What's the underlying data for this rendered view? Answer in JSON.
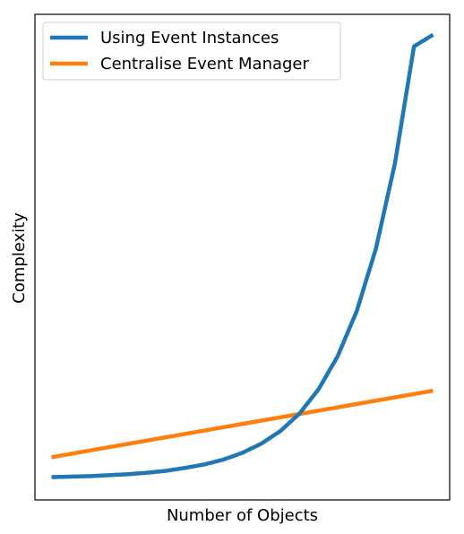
{
  "chart_data": {
    "type": "line",
    "title": "",
    "xlabel": "Number of Objects",
    "ylabel": "Complexity",
    "xlim": [
      0,
      1
    ],
    "ylim": [
      0,
      1
    ],
    "grid": false,
    "ticks_visible": false,
    "legend_position": "top-left",
    "series": [
      {
        "name": "Using Event Instances",
        "color": "#1f77b4",
        "growth": "exponential",
        "x": [
          0.0,
          0.05,
          0.1,
          0.15,
          0.2,
          0.25,
          0.3,
          0.35,
          0.4,
          0.45,
          0.5,
          0.55,
          0.6,
          0.65,
          0.7,
          0.75,
          0.8,
          0.85,
          0.9,
          0.95,
          1.0
        ],
        "y": [
          0.047,
          0.048,
          0.049,
          0.051,
          0.053,
          0.056,
          0.06,
          0.066,
          0.073,
          0.083,
          0.097,
          0.116,
          0.142,
          0.178,
          0.228,
          0.296,
          0.389,
          0.517,
          0.693,
          0.934,
          0.958
        ]
      },
      {
        "name": "Centralise Event Manager",
        "color": "#ff7f0e",
        "growth": "linear",
        "x": [
          0.0,
          1.0
        ],
        "y": [
          0.088,
          0.225
        ]
      }
    ]
  }
}
